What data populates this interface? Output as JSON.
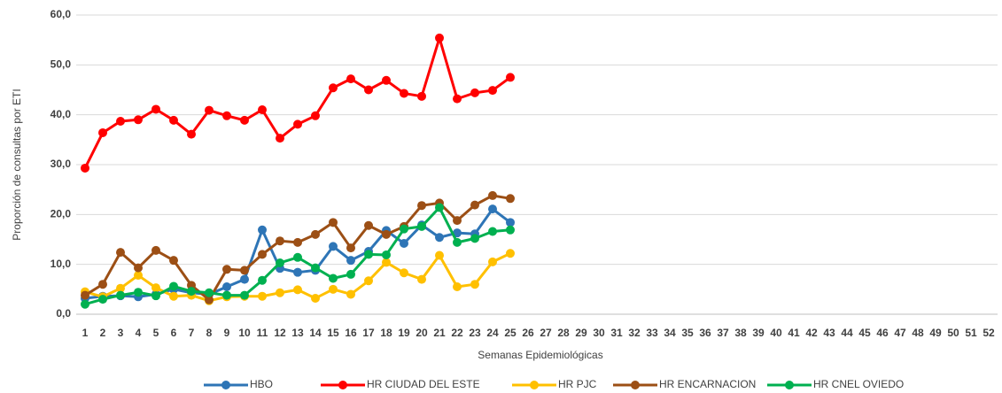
{
  "chart_data": {
    "type": "line",
    "y_label": "Proporción de consultas por ETI",
    "x_label": "Semanas Epidemiológicas",
    "categories": [
      "1",
      "2",
      "3",
      "4",
      "5",
      "6",
      "7",
      "8",
      "9",
      "10",
      "11",
      "12",
      "13",
      "14",
      "15",
      "16",
      "17",
      "18",
      "19",
      "20",
      "21",
      "22",
      "23",
      "24",
      "25",
      "26",
      "27",
      "28",
      "29",
      "30",
      "31",
      "32",
      "33",
      "34",
      "35",
      "36",
      "37",
      "38",
      "39",
      "40",
      "41",
      "42",
      "43",
      "44",
      "45",
      "46",
      "47",
      "48",
      "49",
      "50",
      "51",
      "52"
    ],
    "ylim": [
      0,
      60
    ],
    "yticks": [
      {
        "value": 0,
        "label": "0,0"
      },
      {
        "value": 10,
        "label": "10,0"
      },
      {
        "value": 20,
        "label": "20,0"
      },
      {
        "value": 30,
        "label": "30,0"
      },
      {
        "value": 40,
        "label": "40,0"
      },
      {
        "value": 50,
        "label": "50,0"
      },
      {
        "value": 60,
        "label": "60,0"
      }
    ],
    "grid": true,
    "legend": "bottom",
    "series": [
      {
        "name": "HBO",
        "color": "#2e75b6",
        "values": [
          3.2,
          3.6,
          3.7,
          3.5,
          4.0,
          5.0,
          4.3,
          4.0,
          5.5,
          7.0,
          16.9,
          9.2,
          8.4,
          8.8,
          13.6,
          10.8,
          12.6,
          16.8,
          14.2,
          17.9,
          15.4,
          16.3,
          16.1,
          21.1,
          18.4,
          null,
          null,
          null,
          null,
          null,
          null,
          null,
          null,
          null,
          null,
          null,
          null,
          null,
          null,
          null,
          null,
          null,
          null,
          null,
          null,
          null,
          null,
          null,
          null,
          null,
          null,
          null
        ]
      },
      {
        "name": "HR CIUDAD DEL ESTE",
        "color": "#ff0000",
        "values": [
          29.3,
          36.4,
          38.7,
          39.0,
          41.1,
          38.9,
          36.1,
          40.9,
          39.8,
          38.9,
          41.0,
          35.3,
          38.1,
          39.8,
          45.4,
          47.2,
          45.0,
          46.9,
          44.3,
          43.7,
          55.4,
          43.2,
          44.4,
          44.9,
          47.5,
          null,
          null,
          null,
          null,
          null,
          null,
          null,
          null,
          null,
          null,
          null,
          null,
          null,
          null,
          null,
          null,
          null,
          null,
          null,
          null,
          null,
          null,
          null,
          null,
          null,
          null,
          null
        ]
      },
      {
        "name": "HR PJC",
        "color": "#ffc000",
        "values": [
          4.5,
          3.5,
          5.2,
          7.8,
          5.3,
          3.6,
          3.8,
          2.7,
          3.5,
          3.6,
          3.6,
          4.3,
          4.9,
          3.2,
          5.0,
          4.0,
          6.7,
          10.4,
          8.3,
          7.0,
          11.8,
          5.5,
          6.0,
          10.5,
          12.2,
          null,
          null,
          null,
          null,
          null,
          null,
          null,
          null,
          null,
          null,
          null,
          null,
          null,
          null,
          null,
          null,
          null,
          null,
          null,
          null,
          null,
          null,
          null,
          null,
          null,
          null,
          null
        ]
      },
      {
        "name": "HR ENCARNACION",
        "color": "#9c4f15",
        "values": [
          3.8,
          6.0,
          12.4,
          9.3,
          12.8,
          10.8,
          5.8,
          2.9,
          9.0,
          8.8,
          12.0,
          14.7,
          14.4,
          16.0,
          18.4,
          13.3,
          17.8,
          16.0,
          17.6,
          21.8,
          22.3,
          18.8,
          21.9,
          23.8,
          23.2,
          null,
          null,
          null,
          null,
          null,
          null,
          null,
          null,
          null,
          null,
          null,
          null,
          null,
          null,
          null,
          null,
          null,
          null,
          null,
          null,
          null,
          null,
          null,
          null,
          null,
          null,
          null
        ]
      },
      {
        "name": "HR CNEL OVIEDO",
        "color": "#00b050",
        "values": [
          2.0,
          3.0,
          3.8,
          4.4,
          3.7,
          5.6,
          4.6,
          4.3,
          3.8,
          3.8,
          6.8,
          10.3,
          11.4,
          9.3,
          7.2,
          8.0,
          12.0,
          11.9,
          17.1,
          17.6,
          21.4,
          14.4,
          15.2,
          16.6,
          16.9,
          null,
          null,
          null,
          null,
          null,
          null,
          null,
          null,
          null,
          null,
          null,
          null,
          null,
          null,
          null,
          null,
          null,
          null,
          null,
          null,
          null,
          null,
          null,
          null,
          null,
          null,
          null
        ]
      }
    ]
  }
}
